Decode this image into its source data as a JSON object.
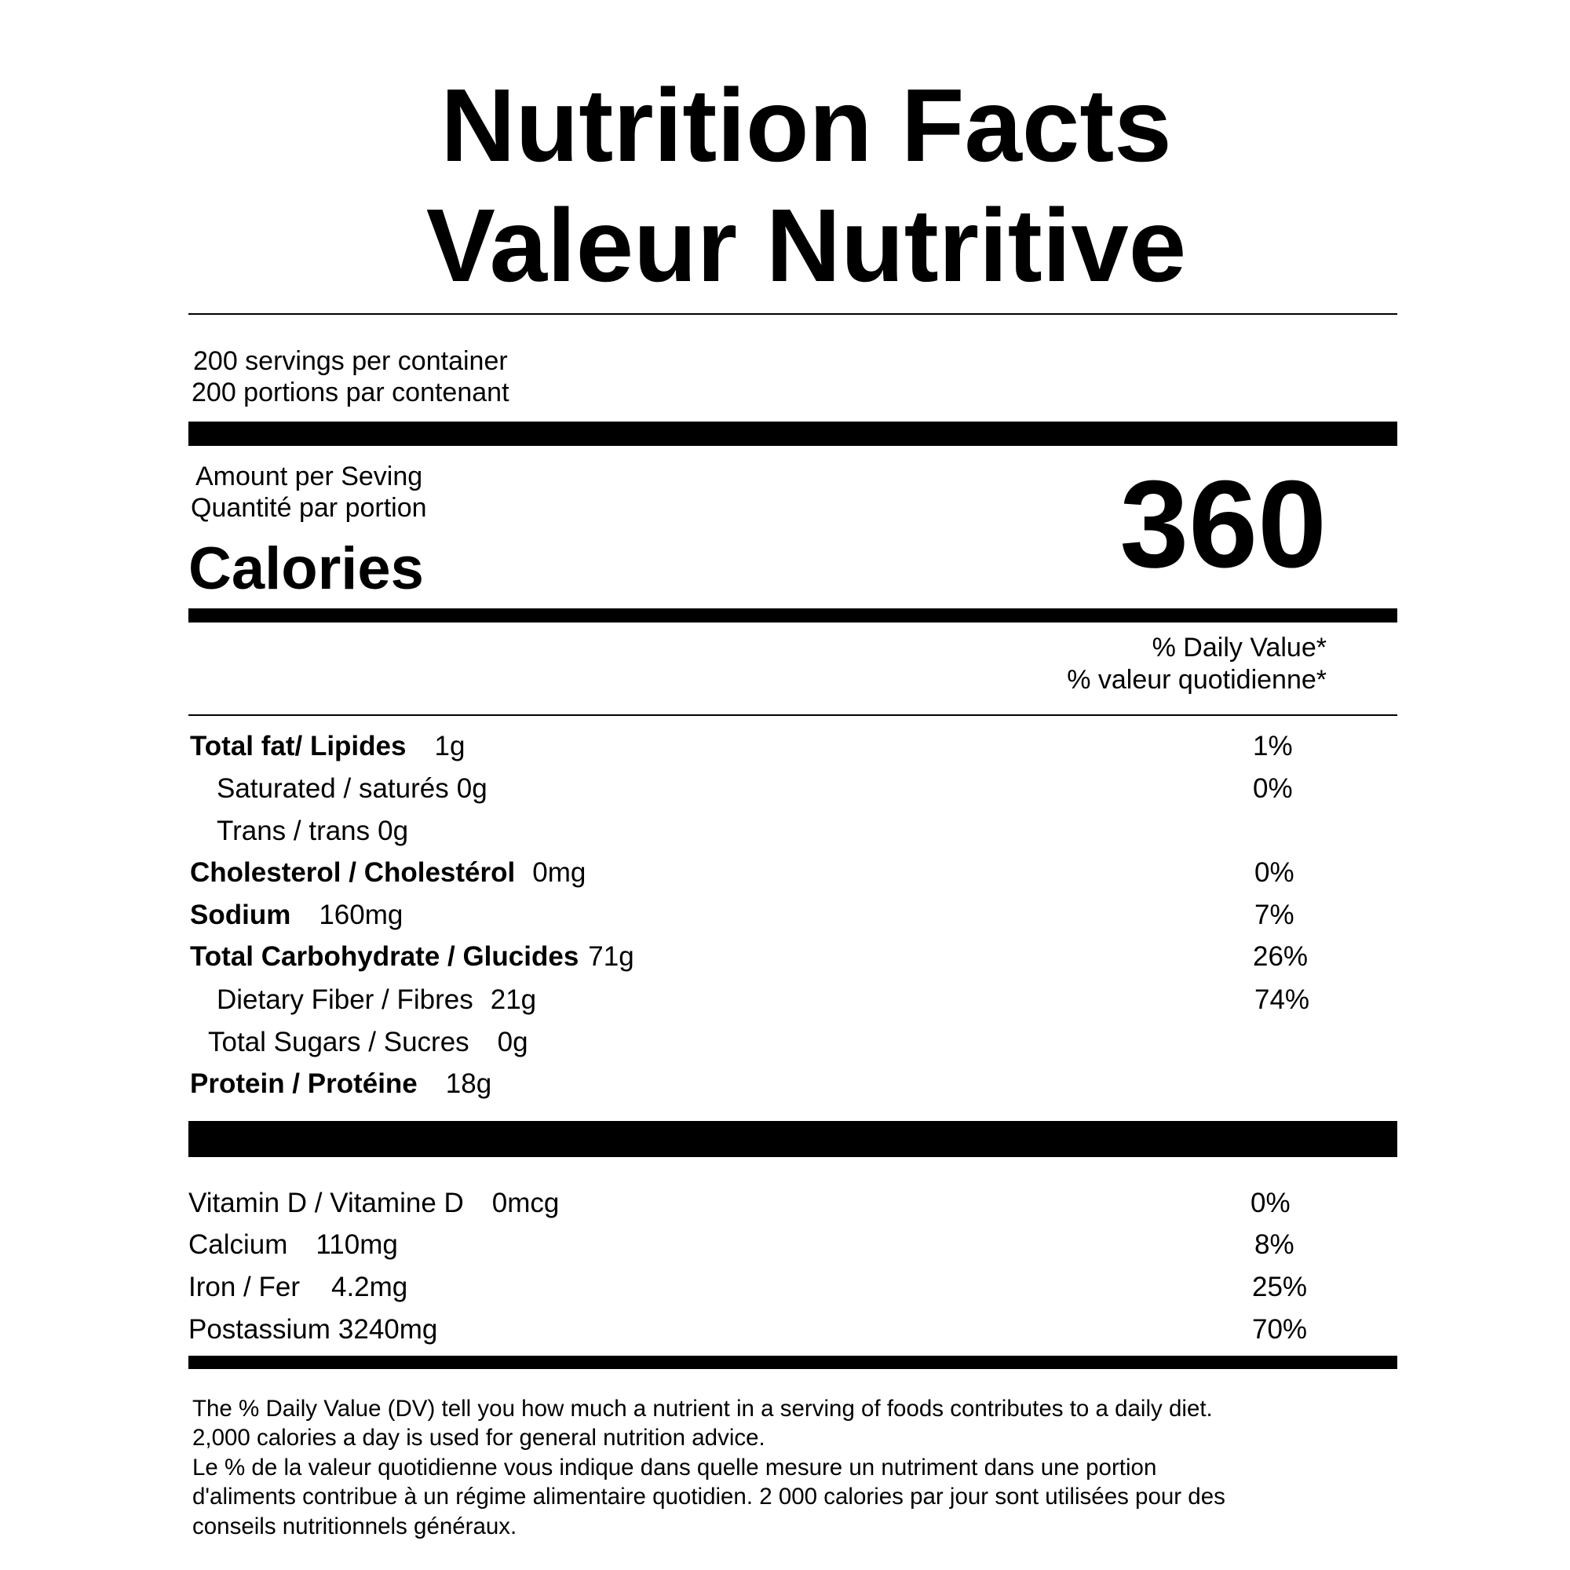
{
  "title": [
    "Nutrition Facts",
    "Valeur Nutritive"
  ],
  "servings": [
    "200 servings per container",
    "200 portions par contenant"
  ],
  "amount_per": [
    "Amount per Seving",
    "Quantité par portion"
  ],
  "calories": {
    "label": "Calories",
    "value": 360
  },
  "daily_value_header": [
    "% Daily Value*",
    "% valeur quotidienne*"
  ],
  "nutrients": [
    {
      "name": "Total fat/ Lipides",
      "amount": "1g",
      "dv": "1%"
    },
    {
      "name": "Saturated / saturés",
      "amount": "0g",
      "dv": "0%"
    },
    {
      "name": "Trans / trans",
      "amount": "0g"
    },
    {
      "name": "Cholesterol / Cholestérol",
      "amount": "0mg",
      "dv": "0%"
    },
    {
      "name": "Sodium",
      "amount": "160mg",
      "dv": "7%"
    },
    {
      "name": "Total Carbohydrate / Glucides",
      "amount": "71g",
      "dv": "26%"
    },
    {
      "name": "Dietary Fiber / Fibres",
      "amount": "21g",
      "dv": "74%"
    },
    {
      "name": "Total Sugars / Sucres",
      "amount": "0g"
    },
    {
      "name": "Protein / Protéine",
      "amount": "18g"
    }
  ],
  "minerals": [
    {
      "name": "Vitamin D / Vitamine D",
      "amount": "0mcg",
      "dv": "0%"
    },
    {
      "name": "Calcium",
      "amount": "110mg",
      "dv": "8%"
    },
    {
      "name": "Iron / Fer",
      "amount": "4.2mg",
      "dv": "25%"
    },
    {
      "name": "Postassium",
      "amount": "3240mg",
      "dv": "70%"
    }
  ],
  "footnote": [
    "The % Daily Value (DV) tell you how much a nutrient in a serving of foods contributes to a daily diet.",
    "2,000 calories a day is used for general nutrition advice.",
    "Le % de la valeur quotidienne vous indique dans quelle mesure un nutriment dans une portion",
    "d'aliments contribue à un régime alimentaire quotidien. 2 000 calories par jour sont utilisées pour des",
    "conseils nutritionnels généraux."
  ]
}
